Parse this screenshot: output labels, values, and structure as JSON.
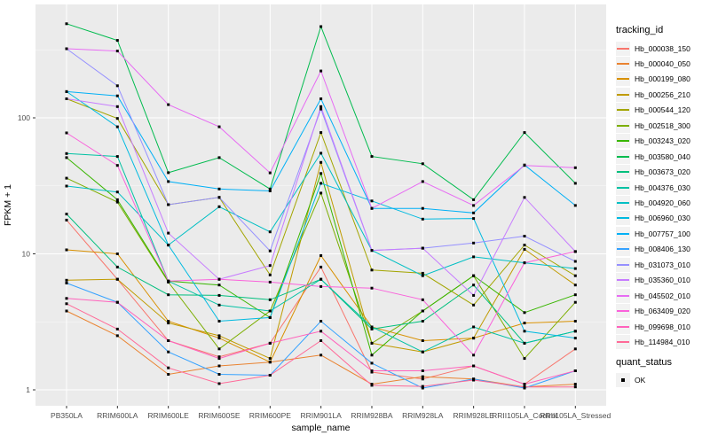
{
  "colors": {
    "panel_bg": "#EBEBEB",
    "grid_major": "#FFFFFF",
    "grid_minor": "#F7F7F7",
    "tick_text": "#4D4D4D",
    "axis_text": "#000000",
    "point": "#000000",
    "legend_key_bg": "#F2F2F2"
  },
  "legend": {
    "color_title": "tracking_id",
    "shape_title": "quant_status",
    "shape_items": [
      {
        "label": "OK"
      }
    ]
  },
  "chart_data": {
    "type": "line",
    "title": "",
    "xlabel": "sample_name",
    "ylabel": "FPKM + 1",
    "y_scale": "log10",
    "y_ticks": [
      "1",
      "10",
      "100"
    ],
    "y_minor": [
      3.162,
      31.62,
      316.2
    ],
    "ylim_log": [
      0.76,
      680
    ],
    "grid": true,
    "legend_position": "right",
    "point_shape": "filled-square-black",
    "categories": [
      "PB350LA",
      "RRIM600LA",
      "RRIM600LE",
      "RRIM600SE",
      "RRIM600PE",
      "RRIM901LA",
      "RRIM928BA",
      "RRIM928LA",
      "RRIM928LE",
      "RRII105LA_Control",
      "RRII105LA_Stressed"
    ],
    "series": [
      {
        "name": "Hb_000038_150",
        "color": "#F8766D",
        "values": [
          17.7,
          6.5,
          2.3,
          1.75,
          2.2,
          8.0,
          1.35,
          1.2,
          1.5,
          1.1,
          2.0
        ]
      },
      {
        "name": "Hb_000040_050",
        "color": "#EA8331",
        "values": [
          3.8,
          2.5,
          1.3,
          1.5,
          1.6,
          1.8,
          1.1,
          1.25,
          1.2,
          1.05,
          1.1
        ]
      },
      {
        "name": "Hb_000199_080",
        "color": "#D89000",
        "values": [
          10.7,
          10.0,
          3.2,
          2.4,
          1.6,
          9.7,
          2.9,
          2.3,
          2.4,
          3.1,
          3.2
        ]
      },
      {
        "name": "Hb_000256_210",
        "color": "#C09B00",
        "values": [
          6.4,
          6.5,
          3.1,
          2.5,
          1.7,
          47,
          2.2,
          1.9,
          2.4,
          10.8,
          5.9
        ]
      },
      {
        "name": "Hb_000544_120",
        "color": "#A3A500",
        "values": [
          138,
          99,
          23,
          26,
          7.0,
          78,
          7.6,
          7.2,
          4.2,
          11.6,
          6.9
        ]
      },
      {
        "name": "Hb_002518_300",
        "color": "#7CAE00",
        "values": [
          36,
          24,
          6.2,
          2.0,
          3.8,
          28,
          2.2,
          3.8,
          6.9,
          1.7,
          4.4
        ]
      },
      {
        "name": "Hb_003243_020",
        "color": "#39B600",
        "values": [
          51,
          25,
          6.3,
          5.9,
          3.4,
          39,
          1.8,
          3.8,
          6.9,
          3.7,
          5.0
        ]
      },
      {
        "name": "Hb_003580_040",
        "color": "#00BB4E",
        "values": [
          492,
          371,
          39.5,
          51,
          30,
          469,
          52,
          46,
          25,
          78,
          33
        ]
      },
      {
        "name": "Hb_003673_020",
        "color": "#00BF7D",
        "values": [
          19.6,
          8.0,
          5.0,
          4.95,
          4.6,
          6.5,
          2.8,
          3.2,
          5.9,
          2.2,
          2.7
        ]
      },
      {
        "name": "Hb_004376_030",
        "color": "#00C1A3",
        "values": [
          54.6,
          52,
          6.3,
          4.2,
          3.8,
          6.5,
          2.9,
          1.9,
          2.9,
          2.2,
          2.7
        ]
      },
      {
        "name": "Hb_004920_060",
        "color": "#00BFC4",
        "values": [
          31.5,
          28.5,
          11.6,
          22.2,
          14.5,
          55,
          10.6,
          6.9,
          9.5,
          8.6,
          7.8
        ]
      },
      {
        "name": "Hb_006960_030",
        "color": "#00BAE0",
        "values": [
          156,
          86,
          11.6,
          3.2,
          3.4,
          33,
          24.5,
          18,
          18.2,
          2.7,
          2.4
        ]
      },
      {
        "name": "Hb_007757_100",
        "color": "#00B0F6",
        "values": [
          156,
          145,
          34,
          30,
          29,
          138,
          21.6,
          21.6,
          20,
          45,
          22.7
        ]
      },
      {
        "name": "Hb_008406_130",
        "color": "#35A2FF",
        "values": [
          6.1,
          4.4,
          1.9,
          1.3,
          1.28,
          3.2,
          1.57,
          1.03,
          1.2,
          1.03,
          1.38
        ]
      },
      {
        "name": "Hb_031073_010",
        "color": "#9590FF",
        "values": [
          322,
          172,
          23,
          26,
          10.5,
          116,
          10.6,
          11,
          12,
          13.5,
          8.8
        ]
      },
      {
        "name": "Hb_035360_010",
        "color": "#C77CFF",
        "values": [
          138,
          121,
          14.2,
          6.5,
          8.2,
          121,
          10.6,
          11,
          4.95,
          26,
          10.4
        ]
      },
      {
        "name": "Hb_045502_010",
        "color": "#E76BF3",
        "values": [
          322,
          310,
          125,
          86,
          39.4,
          221,
          21.6,
          34,
          22.7,
          44.7,
          43
        ]
      },
      {
        "name": "Hb_063409_020",
        "color": "#FA62DB",
        "values": [
          77.5,
          44.7,
          6.3,
          6.5,
          6.2,
          5.75,
          5.6,
          4.6,
          1.8,
          8.6,
          10.4
        ]
      },
      {
        "name": "Hb_099698_010",
        "color": "#FF62BC",
        "values": [
          4.7,
          4.4,
          2.3,
          1.7,
          2.2,
          2.7,
          1.38,
          1.38,
          1.5,
          1.1,
          1.38
        ]
      },
      {
        "name": "Hb_114984_010",
        "color": "#FF6A98",
        "values": [
          4.3,
          2.8,
          1.45,
          1.11,
          1.28,
          2.3,
          1.08,
          1.06,
          1.18,
          1.05,
          1.05
        ]
      }
    ]
  }
}
